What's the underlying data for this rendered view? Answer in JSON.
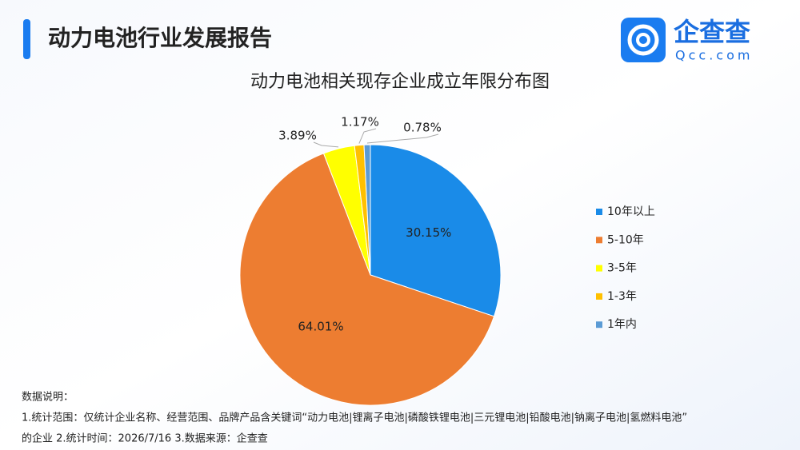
{
  "header": {
    "title": "动力电池行业发展报告",
    "logo_name": "企查查",
    "logo_domain": "Qcc.com"
  },
  "chart_data": {
    "type": "pie",
    "title": "动力电池相关现存企业成立年限分布图",
    "categories": [
      "10年以上",
      "5-10年",
      "3-5年",
      "1-3年",
      "1年内"
    ],
    "values": [
      30.15,
      64.01,
      3.89,
      1.17,
      0.78
    ],
    "value_labels": [
      "30.15%",
      "64.01%",
      "3.89%",
      "1.17%",
      "0.78%"
    ],
    "colors": [
      "#1a8be8",
      "#ed7d31",
      "#ffff00",
      "#ffc000",
      "#5b9bd5"
    ],
    "legend": "right"
  },
  "notes": [
    "数据说明：",
    "1.统计范围：仅统计企业名称、经营范围、品牌产品含关键词“动力电池|锂离子电池|磷酸铁锂电池|三元锂电池|铅酸电池|钠离子电池|氢燃料电池”",
    "的企业   2.统计时间：2026/7/16  3.数据来源：企查查"
  ]
}
